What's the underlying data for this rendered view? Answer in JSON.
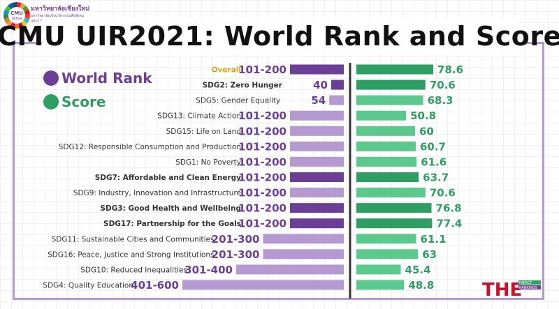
{
  "header": {
    "title": "CMU UIR2021: World Rank and Score",
    "logo_badge_top": "CMU",
    "logo_badge_bottom": "SDGs",
    "logo_name": "มหาวิทยาลัยเชียงใหม่",
    "logo_line1": "มหาวิทยาลัยเชิงนวัตกรรมเพื่อสังคม",
    "logo_line2": "และการพัฒนาที่ยั่งยืน"
  },
  "legend": {
    "rank_label": "World Rank",
    "score_label": "Score"
  },
  "badge": {
    "the": "THE",
    "impact": "IMPACT",
    "rankings": "RANKINGS"
  },
  "colors": {
    "rank_dark": "#6b3f98",
    "rank_light": "#b49ad0",
    "score_dark": "#2e9e63",
    "score_light": "#5cc98c",
    "rank_text": "#6b3f98",
    "score_text": "#2e9e63",
    "overall_text": "#d4a417",
    "divider": "#333333"
  },
  "chart_data": {
    "type": "bar",
    "title": "CMU UIR2021: World Rank and Score",
    "categories": [
      "Overall",
      "SDG2: Zero Hunger",
      "SDG5: Gender Equality",
      "SDG13: Climate Action",
      "SDG15: Life on Land",
      "SDG12: Responsible Consumption and Production",
      "SDG1: No Poverty",
      "SDG7: Affordable and Clean Energy",
      "SDG9: Industry, Innovation and Infrastructure",
      "SDG3: Good Health and Wellbeing",
      "SDG17: Partnership for the Goals",
      "SDG11: Sustainable Cities and Communities",
      "SDG16: Peace, Justice and Strong Institutions",
      "SDG10: Reduced Inequalities",
      "SDG4: Quality Education"
    ],
    "highlighted": [
      false,
      true,
      false,
      false,
      false,
      false,
      false,
      true,
      false,
      true,
      true,
      false,
      false,
      false,
      false
    ],
    "series": [
      {
        "name": "World Rank",
        "labels": [
          "101-200",
          "40",
          "54",
          "101-200",
          "101-200",
          "101-200",
          "101-200",
          "101-200",
          "101-200",
          "101-200",
          "101-200",
          "201-300",
          "201-300",
          "301-400",
          "401-600"
        ],
        "values": [
          200,
          40,
          54,
          200,
          200,
          200,
          200,
          200,
          200,
          200,
          200,
          300,
          300,
          400,
          600
        ]
      },
      {
        "name": "Score",
        "labels": [
          "78.6",
          "70.6",
          "68.3",
          "50.8",
          "60",
          "60.7",
          "61.6",
          "63.7",
          "70.6",
          "76.8",
          "77.4",
          "61.1",
          "63",
          "45.4",
          "48.8"
        ],
        "values": [
          78.6,
          70.6,
          68.3,
          50.8,
          60,
          60.7,
          61.6,
          63.7,
          70.6,
          76.8,
          77.4,
          61.1,
          63,
          45.4,
          48.8
        ]
      }
    ],
    "legend_position": "top-left",
    "grid": false
  }
}
